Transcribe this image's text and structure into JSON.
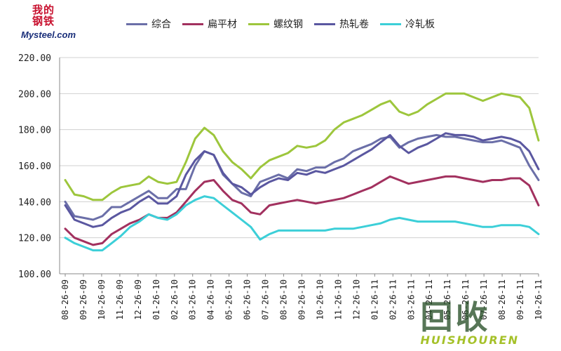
{
  "logo": {
    "cn": "我的钢铁",
    "text": "Mysteel.com"
  },
  "watermark": {
    "big": "回收",
    "small": "HUISHOUREN"
  },
  "chart_data": {
    "type": "line",
    "title": "",
    "xlabel": "",
    "ylabel": "",
    "ylim": [
      100,
      220
    ],
    "yticks": [
      "100.00",
      "120.00",
      "140.00",
      "160.00",
      "180.00",
      "200.00",
      "220.00"
    ],
    "xticks": [
      "08-26-09",
      "09-26-09",
      "10-26-09",
      "11-26-09",
      "12-26-09",
      "01-26-10",
      "02-26-10",
      "03-26-10",
      "04-26-10",
      "05-26-10",
      "06-26-10",
      "07-26-10",
      "08-26-10",
      "09-26-10",
      "10-26-10",
      "11-26-10",
      "12-26-10",
      "01-26-11",
      "02-26-11",
      "03-26-11",
      "04-26-11",
      "05-26-11",
      "06-26-11",
      "07-26-11",
      "08-26-11",
      "09-26-11",
      "10-26-11"
    ],
    "grid": "horizontal",
    "legend": "top",
    "series": [
      {
        "name": "综合",
        "color": "#6b6fa8",
        "values": [
          140,
          132,
          131,
          130,
          132,
          137,
          137,
          140,
          143,
          146,
          142,
          142,
          147,
          147,
          160,
          168,
          166,
          155,
          150,
          145,
          143,
          151,
          153,
          155,
          153,
          158,
          157,
          159,
          159,
          162,
          164,
          168,
          170,
          172,
          175,
          176,
          170,
          173,
          175,
          176,
          177,
          176,
          176,
          175,
          174,
          173,
          173,
          174,
          172,
          170,
          160,
          152
        ]
      },
      {
        "name": "扁平材",
        "color": "#a2315f",
        "values": [
          125,
          120,
          118,
          116,
          117,
          122,
          125,
          128,
          130,
          133,
          131,
          131,
          134,
          140,
          146,
          151,
          152,
          146,
          141,
          139,
          134,
          133,
          138,
          139,
          140,
          141,
          140,
          139,
          140,
          141,
          142,
          144,
          146,
          148,
          151,
          154,
          152,
          150,
          151,
          152,
          153,
          154,
          154,
          153,
          152,
          151,
          152,
          152,
          153,
          153,
          149,
          138
        ]
      },
      {
        "name": "螺纹钢",
        "color": "#9dc63c",
        "values": [
          152,
          144,
          143,
          141,
          141,
          145,
          148,
          149,
          150,
          154,
          151,
          150,
          151,
          162,
          175,
          181,
          177,
          168,
          162,
          158,
          153,
          159,
          163,
          165,
          167,
          171,
          170,
          171,
          174,
          180,
          184,
          186,
          188,
          191,
          194,
          196,
          190,
          188,
          190,
          194,
          197,
          200,
          200,
          200,
          198,
          196,
          198,
          200,
          199,
          198,
          192,
          174
        ]
      },
      {
        "name": "热轧卷",
        "color": "#5a57a0",
        "values": [
          138,
          130,
          128,
          126,
          127,
          131,
          134,
          136,
          140,
          143,
          139,
          139,
          143,
          155,
          163,
          168,
          166,
          156,
          150,
          148,
          144,
          148,
          151,
          153,
          152,
          156,
          155,
          157,
          156,
          158,
          160,
          163,
          166,
          169,
          173,
          177,
          171,
          167,
          170,
          172,
          175,
          178,
          177,
          177,
          176,
          174,
          175,
          176,
          175,
          173,
          168,
          158
        ]
      },
      {
        "name": "冷轧板",
        "color": "#3ccfd8",
        "values": [
          120,
          117,
          115,
          113,
          113,
          117,
          121,
          126,
          129,
          133,
          131,
          130,
          133,
          138,
          141,
          143,
          142,
          138,
          134,
          130,
          126,
          119,
          122,
          124,
          124,
          124,
          124,
          124,
          124,
          125,
          125,
          125,
          126,
          127,
          128,
          130,
          131,
          130,
          129,
          129,
          129,
          129,
          129,
          128,
          127,
          126,
          126,
          127,
          127,
          127,
          126,
          122
        ]
      }
    ]
  }
}
